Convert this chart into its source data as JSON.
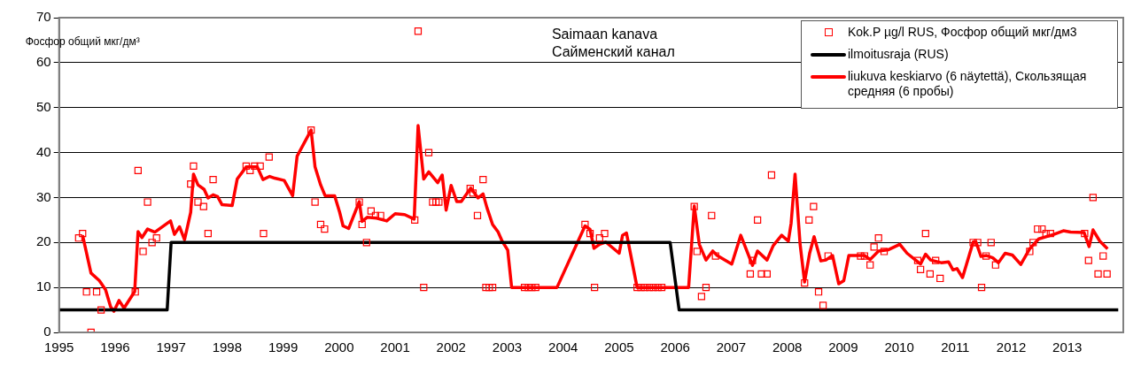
{
  "chart_data": {
    "type": "line",
    "title": "Saimaan kanava\nСайменский канал",
    "ylabel": "Фосфор общий мкг/дм³",
    "xlim": [
      1995,
      2014
    ],
    "xticks": [
      1995,
      1996,
      1997,
      1998,
      1999,
      2000,
      2001,
      2002,
      2003,
      2004,
      2005,
      2006,
      2007,
      2008,
      2009,
      2010,
      2011,
      2012,
      2013
    ],
    "ylim": [
      0,
      70
    ],
    "yticks": [
      0,
      10,
      20,
      30,
      40,
      50,
      60,
      70
    ],
    "grid": "y",
    "legend": "top right",
    "series": [
      {
        "name": "Kok.P µg/l RUS, Фосфор общий мкг/дм3",
        "type": "scatter",
        "marker": "square",
        "color": "#ff0000",
        "x": [
          1995.35,
          1995.42,
          1995.49,
          1995.57,
          1995.67,
          1995.75,
          1996.36,
          1996.41,
          1996.5,
          1996.58,
          1996.66,
          1996.74,
          1997.35,
          1997.4,
          1997.48,
          1997.58,
          1997.66,
          1997.75,
          1998.34,
          1998.41,
          1998.49,
          1998.59,
          1998.65,
          1998.75,
          1999.5,
          1999.57,
          1999.67,
          1999.74,
          2000.36,
          2000.41,
          2000.49,
          2000.57,
          2000.65,
          2000.74,
          2001.35,
          2001.41,
          2001.51,
          2001.6,
          2001.67,
          2001.73,
          2001.78,
          2002.34,
          2002.39,
          2002.47,
          2002.57,
          2002.62,
          2002.68,
          2002.74,
          2003.31,
          2003.38,
          2003.44,
          2003.51,
          2004.39,
          2004.48,
          2004.56,
          2004.65,
          2004.74,
          2005.32,
          2005.39,
          2005.46,
          2005.54,
          2005.61,
          2005.69,
          2005.76,
          2006.34,
          2006.39,
          2006.47,
          2006.55,
          2006.65,
          2006.72,
          2007.34,
          2007.38,
          2007.47,
          2007.54,
          2007.64,
          2007.72,
          2008.31,
          2008.39,
          2008.47,
          2008.56,
          2008.64,
          2008.73,
          2009.31,
          2009.38,
          2009.48,
          2009.55,
          2009.63,
          2009.73,
          2010.33,
          2010.38,
          2010.47,
          2010.55,
          2010.65,
          2010.73,
          2011.32,
          2011.4,
          2011.47,
          2011.55,
          2011.64,
          2011.72,
          2012.33,
          2012.39,
          2012.47,
          2012.55,
          2012.62,
          2012.7,
          2013.31,
          2013.38,
          2013.46,
          2013.55,
          2013.64,
          2013.71
        ],
        "values": [
          21,
          22,
          9,
          0,
          9,
          5,
          9,
          36,
          18,
          29,
          20,
          21,
          33,
          37,
          29,
          28,
          22,
          34,
          37,
          36,
          37,
          37,
          22,
          39,
          45,
          29,
          24,
          23,
          29,
          24,
          20,
          27,
          26,
          26,
          25,
          67,
          10,
          40,
          29,
          29,
          29,
          32,
          31,
          26,
          34,
          10,
          10,
          10,
          10,
          10,
          10,
          10,
          24,
          22,
          10,
          21,
          22,
          10,
          10,
          10,
          10,
          10,
          10,
          10,
          28,
          18,
          8,
          10,
          26,
          17,
          13,
          16,
          25,
          13,
          13,
          35,
          11,
          25,
          28,
          9,
          6,
          17,
          17,
          17,
          15,
          19,
          21,
          18,
          16,
          14,
          22,
          13,
          16,
          12,
          20,
          20,
          10,
          17,
          20,
          15,
          18,
          20,
          23,
          23,
          22,
          22,
          22,
          16,
          30,
          13,
          17,
          13
        ]
      },
      {
        "name": "ilmoitusraja (RUS)",
        "type": "line",
        "marker": "none",
        "color": "#000000",
        "x": [
          1995,
          1996.93,
          1997.0,
          2005.91,
          2006.07,
          2013.91
        ],
        "values": [
          5,
          5,
          20,
          20,
          5,
          5
        ]
      },
      {
        "name": "liukuva keskiarvo (6 näytettä), Скользящая средняя (6 пробы)",
        "type": "line",
        "marker": "none",
        "color": "#ff0000",
        "x": [
          1995.42,
          1995.57,
          1995.72,
          1995.83,
          1995.92,
          1995.98,
          1996.07,
          1996.16,
          1996.35,
          1996.41,
          1996.48,
          1996.58,
          1996.71,
          1996.99,
          1997.06,
          1997.15,
          1997.24,
          1997.35,
          1997.4,
          1997.48,
          1997.59,
          1997.66,
          1997.75,
          1997.83,
          1997.91,
          1998.09,
          1998.18,
          1998.34,
          1998.54,
          1998.64,
          1998.76,
          1998.85,
          1999.02,
          1999.17,
          1999.25,
          1999.5,
          1999.57,
          1999.67,
          1999.75,
          1999.92,
          2000.01,
          2000.07,
          2000.17,
          2000.36,
          2000.41,
          2000.5,
          2000.67,
          2000.85,
          2001.0,
          2001.17,
          2001.34,
          2001.41,
          2001.51,
          2001.6,
          2001.76,
          2001.84,
          2001.91,
          2002.0,
          2002.1,
          2002.18,
          2002.35,
          2002.48,
          2002.57,
          2002.64,
          2002.74,
          2002.84,
          2002.91,
          2003.01,
          2003.08,
          2003.89,
          2004.39,
          2004.48,
          2004.55,
          2004.65,
          2004.76,
          2005.0,
          2005.06,
          2005.13,
          2005.32,
          2006.24,
          2006.34,
          2006.43,
          2006.55,
          2006.67,
          2006.75,
          2007.01,
          2007.17,
          2007.38,
          2007.47,
          2007.64,
          2007.75,
          2007.9,
          2008.02,
          2008.07,
          2008.14,
          2008.23,
          2008.31,
          2008.4,
          2008.48,
          2008.6,
          2008.69,
          2008.81,
          2008.92,
          2009.01,
          2009.1,
          2009.38,
          2009.48,
          2009.63,
          2009.81,
          2010.01,
          2010.14,
          2010.38,
          2010.47,
          2010.56,
          2010.75,
          2010.88,
          2010.96,
          2011.03,
          2011.13,
          2011.32,
          2011.37,
          2011.46,
          2011.56,
          2011.67,
          2011.77,
          2011.89,
          2012.02,
          2012.17,
          2012.33,
          2012.49,
          2012.76,
          2012.93,
          2013.06,
          2013.3,
          2013.39,
          2013.46,
          2013.58,
          2013.72
        ],
        "values": [
          21.6,
          13.2,
          11.5,
          9.5,
          5.7,
          4.7,
          7.1,
          5.4,
          9.1,
          22.4,
          21.1,
          23,
          22.3,
          24.8,
          21.8,
          23.5,
          20.6,
          26.7,
          35.2,
          32.8,
          31.8,
          29.9,
          30.6,
          30.2,
          28.4,
          28.2,
          34.1,
          36.8,
          36.8,
          34,
          34.7,
          34.3,
          33.8,
          30.4,
          39.2,
          45,
          36.8,
          32.8,
          30.4,
          30.4,
          26.7,
          23.7,
          23.1,
          29.1,
          24.7,
          25.6,
          25.4,
          24.8,
          26.4,
          26.2,
          25.2,
          46,
          34.1,
          35.7,
          33.3,
          35,
          27.2,
          32.7,
          29.1,
          29.1,
          32.1,
          29.9,
          30.8,
          27.7,
          24,
          22.3,
          20.3,
          18.3,
          10,
          10,
          23.7,
          22.9,
          18.7,
          19.6,
          20.1,
          17.6,
          21.6,
          22.1,
          10,
          10,
          28.1,
          19.6,
          16.1,
          18.1,
          17.1,
          15.2,
          21.6,
          14.9,
          18.1,
          16.1,
          19.3,
          21.6,
          20.3,
          24.3,
          35.2,
          19.6,
          11.2,
          17.6,
          21.3,
          15.9,
          16.1,
          17.1,
          10.8,
          11.5,
          17.1,
          17.1,
          16.2,
          18.1,
          18.4,
          19.6,
          17.6,
          15.2,
          17.4,
          16.1,
          15.5,
          15.7,
          13.9,
          14.2,
          12.2,
          20.1,
          20.1,
          16.9,
          17.1,
          16.6,
          15.5,
          17.6,
          17.2,
          15.1,
          18.6,
          20.8,
          21.8,
          22.6,
          22.3,
          22.2,
          19.1,
          22.8,
          20.3,
          18.6
        ]
      }
    ]
  }
}
